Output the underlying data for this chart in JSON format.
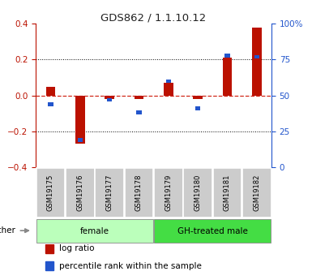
{
  "title": "GDS862 / 1.1.10.12",
  "samples": [
    "GSM19175",
    "GSM19176",
    "GSM19177",
    "GSM19178",
    "GSM19179",
    "GSM19180",
    "GSM19181",
    "GSM19182"
  ],
  "log_ratio": [
    0.05,
    -0.27,
    -0.02,
    -0.02,
    0.07,
    -0.02,
    0.21,
    0.38
  ],
  "percentile_rank": [
    44,
    19,
    47,
    38,
    60,
    41,
    78,
    77
  ],
  "groups": [
    {
      "label": "female",
      "start": 0,
      "end": 4,
      "color": "#bbffbb"
    },
    {
      "label": "GH-treated male",
      "start": 4,
      "end": 8,
      "color": "#44dd44"
    }
  ],
  "other_label": "other",
  "ylim_left": [
    -0.4,
    0.4
  ],
  "ylim_right": [
    0,
    100
  ],
  "yticks_left": [
    -0.4,
    -0.2,
    0.0,
    0.2,
    0.4
  ],
  "yticks_right": [
    0,
    25,
    50,
    75,
    100
  ],
  "red_color": "#bb1100",
  "blue_color": "#2255cc",
  "hline_color": "#cc1100",
  "bg_color": "#ffffff",
  "legend_red": "log ratio",
  "legend_blue": "percentile rank within the sample"
}
